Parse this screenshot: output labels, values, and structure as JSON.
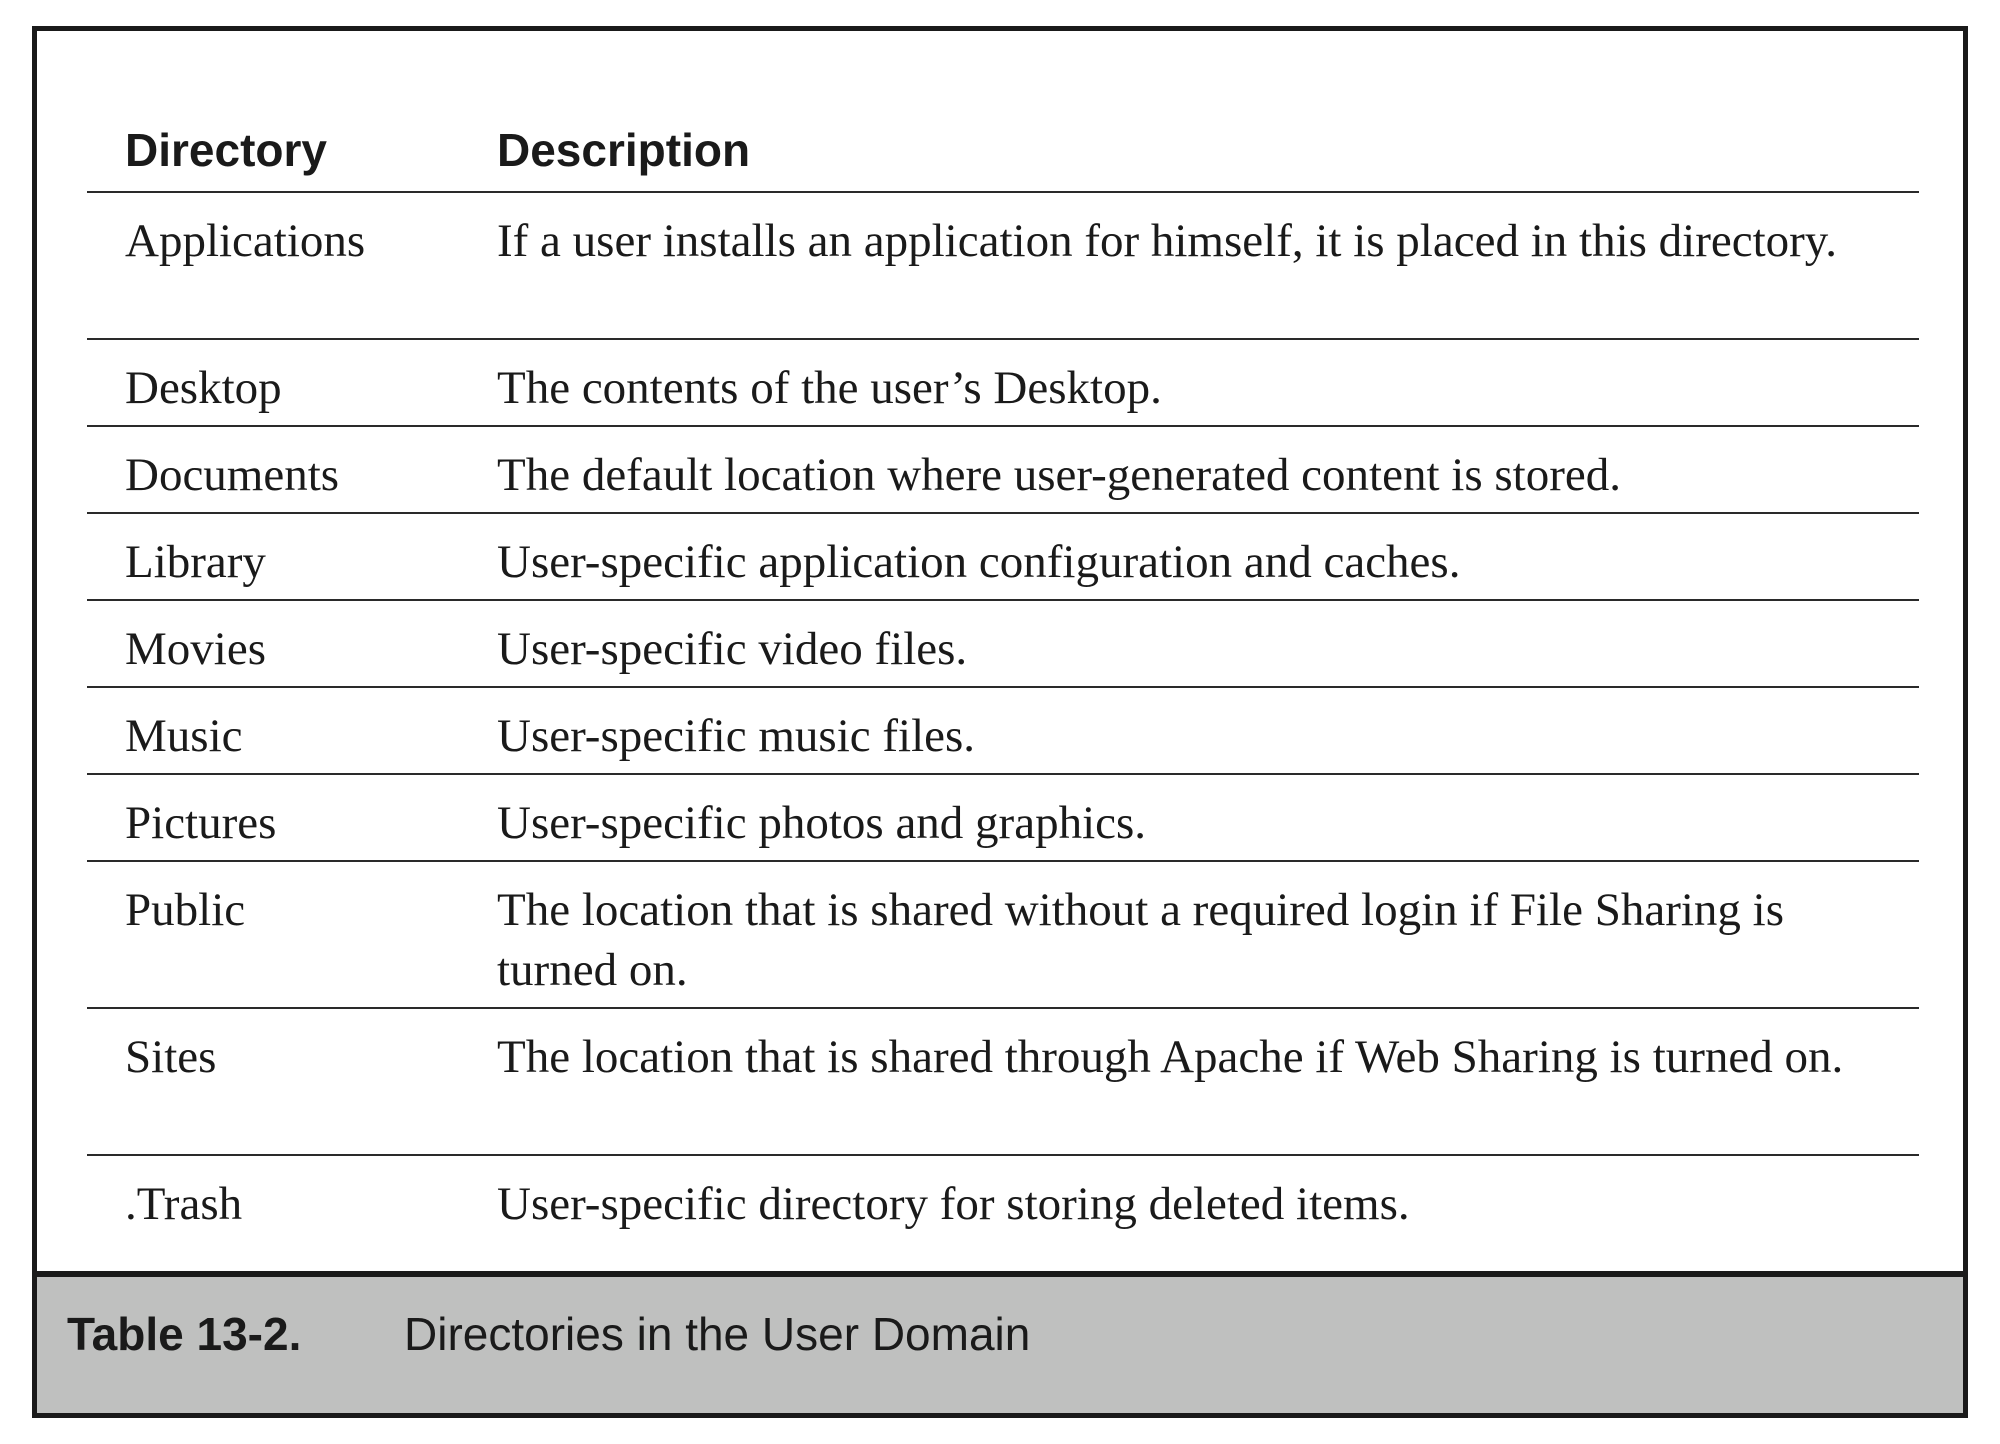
{
  "table": {
    "headers": {
      "directory": "Directory",
      "description": "Description"
    },
    "rows": [
      {
        "directory": "Applications",
        "description": "If a user installs an application for himself, it is placed in this directory."
      },
      {
        "directory": "Desktop",
        "description": "The contents of the user’s Desktop."
      },
      {
        "directory": "Documents",
        "description": "The default location where user-generated content is stored."
      },
      {
        "directory": "Library",
        "description": "User-specific application configuration and caches."
      },
      {
        "directory": "Movies",
        "description": "User-specific video files."
      },
      {
        "directory": "Music",
        "description": "User-specific music files."
      },
      {
        "directory": "Pictures",
        "description": "User-specific photos and graphics."
      },
      {
        "directory": "Public",
        "description": "The location that is shared without a required login if File Sharing is turned on."
      },
      {
        "directory": "Sites",
        "description": "The location that is shared through Apache if Web Sharing is turned on."
      },
      {
        "directory": ".Trash",
        "description": "User-specific directory for storing deleted items."
      }
    ]
  },
  "caption": {
    "number": "Table 13-2.",
    "text": "Directories in the User Domain"
  }
}
